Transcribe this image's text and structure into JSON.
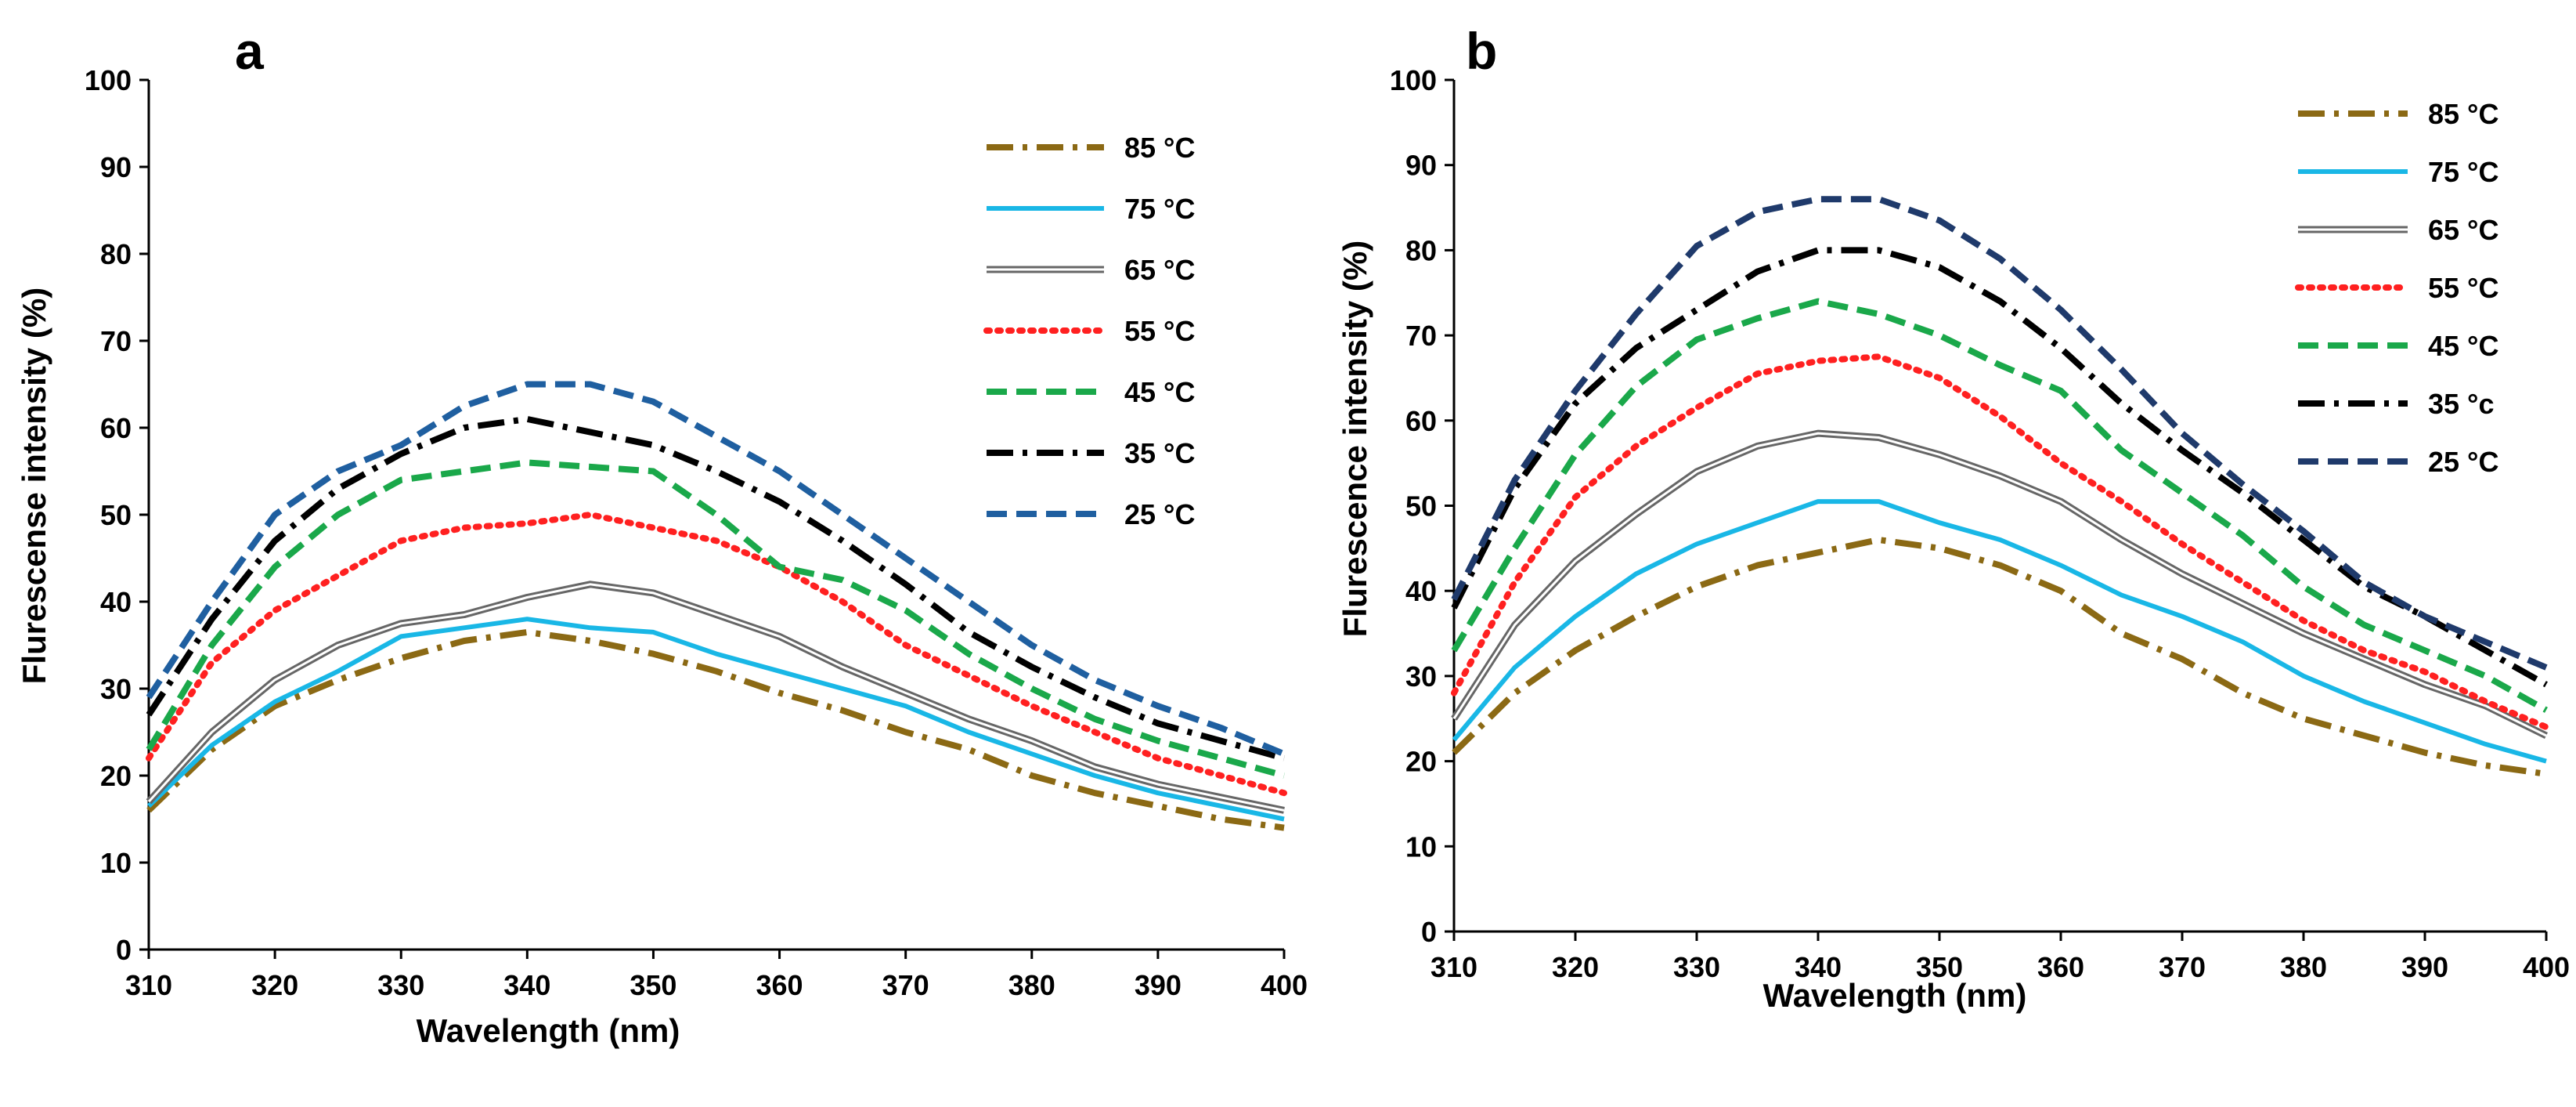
{
  "chart_data": [
    {
      "panel_label": "a",
      "type": "line",
      "xlabel": "Wavelength (nm)",
      "ylabel": "Flurescense intensity (%)",
      "xlim": [
        310,
        400
      ],
      "ylim": [
        0,
        100
      ],
      "x_ticks": [
        "310",
        "320",
        "330",
        "340",
        "350",
        "360",
        "370",
        "380",
        "390",
        "400"
      ],
      "y_ticks": [
        "0",
        "10",
        "20",
        "30",
        "40",
        "50",
        "60",
        "70",
        "80",
        "90",
        "100"
      ],
      "legend_position": "top-right",
      "x": [
        310,
        315,
        320,
        325,
        330,
        335,
        340,
        345,
        350,
        355,
        360,
        365,
        370,
        375,
        380,
        385,
        390,
        395,
        400
      ],
      "series": [
        {
          "name": "85 °C",
          "color": "#8b6914",
          "dash": "dashdot",
          "values": [
            16,
            23,
            28,
            31,
            33.5,
            35.5,
            36.5,
            35.5,
            34,
            32,
            29.5,
            27.5,
            25,
            23,
            20,
            18,
            16.5,
            15,
            14
          ]
        },
        {
          "name": "75 °C",
          "color": "#19b7e6",
          "dash": "solid",
          "values": [
            16.5,
            23.5,
            28.5,
            32,
            36,
            37,
            38,
            37,
            36.5,
            34,
            32,
            30,
            28,
            25,
            22.5,
            20,
            18,
            16.5,
            15
          ]
        },
        {
          "name": "65 °C",
          "color": "#666666",
          "dash": "double",
          "values": [
            17,
            25,
            31,
            35,
            37.5,
            38.5,
            40.5,
            42,
            41,
            38.5,
            36,
            32.5,
            29.5,
            26.5,
            24,
            21,
            19,
            17.5,
            16
          ]
        },
        {
          "name": "55 °C",
          "color": "#ff2020",
          "dash": "dotted",
          "values": [
            22,
            33,
            39,
            43,
            47,
            48.5,
            49,
            50,
            48.5,
            47,
            44,
            40,
            35,
            31.5,
            28,
            25,
            22,
            20,
            18
          ]
        },
        {
          "name": "45 °C",
          "color": "#1aa84a",
          "dash": "dashed",
          "values": [
            23,
            35,
            44,
            50,
            54,
            55,
            56,
            55.5,
            55,
            50,
            44,
            42.5,
            39,
            34,
            30,
            26.5,
            24,
            22,
            20
          ]
        },
        {
          "name": "35 °C",
          "color": "#000000",
          "dash": "dashdot",
          "values": [
            27,
            38,
            47,
            53,
            57,
            60,
            61,
            59.5,
            58,
            55,
            51.5,
            47,
            42,
            36.5,
            32.5,
            29,
            26,
            24,
            22
          ]
        },
        {
          "name": "25 °C",
          "color": "#1f5fa0",
          "dash": "dashed",
          "values": [
            29,
            40,
            50,
            55,
            58,
            62.5,
            65,
            65,
            63,
            59,
            55,
            50,
            45,
            40,
            35,
            31,
            28,
            25.5,
            22.5
          ]
        }
      ]
    },
    {
      "panel_label": "b",
      "type": "line",
      "xlabel": "Wavelength (nm)",
      "ylabel": "Flurescence intensity (%)",
      "xlim": [
        310,
        400
      ],
      "ylim": [
        0,
        100
      ],
      "x_ticks": [
        "310",
        "320",
        "330",
        "340",
        "350",
        "360",
        "370",
        "380",
        "390",
        "400"
      ],
      "y_ticks": [
        "0",
        "10",
        "20",
        "30",
        "40",
        "50",
        "60",
        "70",
        "80",
        "90",
        "100"
      ],
      "legend_position": "top-right",
      "x": [
        310,
        315,
        320,
        325,
        330,
        335,
        340,
        345,
        350,
        355,
        360,
        365,
        370,
        375,
        380,
        385,
        390,
        395,
        400
      ],
      "series": [
        {
          "name": "85 °C",
          "color": "#8b6914",
          "dash": "dashdot",
          "values": [
            21,
            28,
            33,
            37,
            40.5,
            43,
            44.5,
            46,
            45,
            43,
            40,
            35,
            32,
            28,
            25,
            23,
            21,
            19.5,
            18.5
          ]
        },
        {
          "name": "75 °C",
          "color": "#19b7e6",
          "dash": "solid",
          "values": [
            22.5,
            31,
            37,
            42,
            45.5,
            48,
            50.5,
            50.5,
            48,
            46,
            43,
            39.5,
            37,
            34,
            30,
            27,
            24.5,
            22,
            20
          ]
        },
        {
          "name": "65 °C",
          "color": "#666666",
          "dash": "double",
          "values": [
            25,
            36,
            43.5,
            49,
            54,
            57,
            58.5,
            58,
            56,
            53.5,
            50.5,
            46,
            42,
            38.5,
            35,
            32,
            29,
            26.5,
            23
          ]
        },
        {
          "name": "55 °C",
          "color": "#ff2020",
          "dash": "dotted",
          "values": [
            28,
            41,
            51,
            57,
            61.5,
            65.5,
            67,
            67.5,
            65,
            60.5,
            55,
            50.5,
            45.5,
            41,
            36.5,
            33,
            30.5,
            27,
            24
          ]
        },
        {
          "name": "45 °C",
          "color": "#1aa84a",
          "dash": "dashed",
          "values": [
            33,
            45,
            56,
            64,
            69.5,
            72,
            74,
            72.5,
            70,
            66.5,
            63.5,
            56.5,
            51.5,
            46.5,
            40.5,
            36,
            33,
            30,
            26
          ]
        },
        {
          "name": "35 °c",
          "color": "#000000",
          "dash": "dashdot",
          "values": [
            38,
            52,
            62,
            68.5,
            73,
            77.5,
            80,
            80,
            78,
            74,
            68.5,
            62,
            56.5,
            51.5,
            46,
            40.5,
            37,
            33,
            29
          ]
        },
        {
          "name": "25 °C",
          "color": "#1f3a6b",
          "dash": "dashed",
          "values": [
            39,
            53,
            63.5,
            72.5,
            80.5,
            84.5,
            86,
            86,
            83.5,
            79,
            73,
            66,
            58.5,
            52.5,
            47,
            41,
            37,
            34,
            31
          ]
        }
      ]
    }
  ]
}
